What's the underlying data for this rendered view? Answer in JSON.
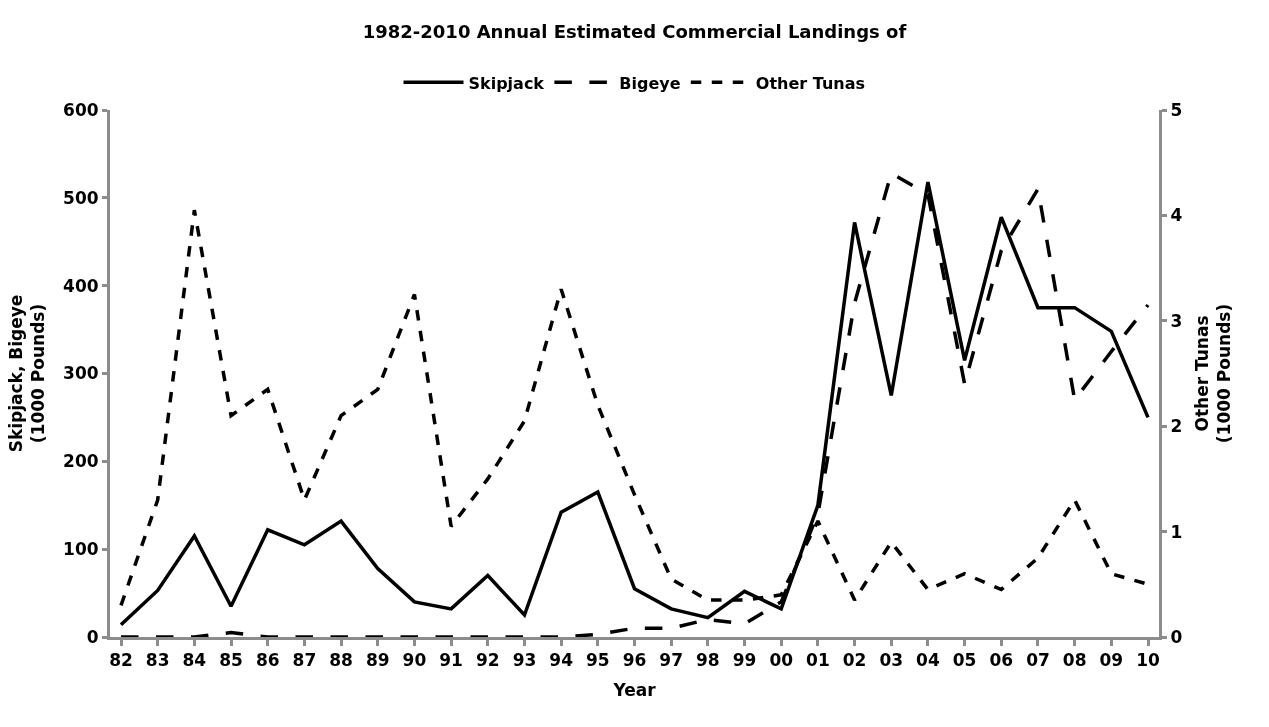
{
  "chart_data": {
    "type": "line",
    "title": "1982-2010 Annual Estimated Commercial Landings of",
    "xlabel": "Year",
    "ylabel": "Skipjack, Bigeye\n(1000 Pounds)",
    "y2label": "Other Tunas\n(1000 Pounds)",
    "categories": [
      "82",
      "83",
      "84",
      "85",
      "86",
      "87",
      "88",
      "89",
      "90",
      "91",
      "92",
      "93",
      "94",
      "95",
      "96",
      "97",
      "98",
      "99",
      "00",
      "01",
      "02",
      "03",
      "04",
      "05",
      "06",
      "07",
      "08",
      "09",
      "10"
    ],
    "series": [
      {
        "name": "Skipjack",
        "color": "#000000",
        "line_style": "solid",
        "values": [
          14,
          53,
          115,
          35,
          122,
          105,
          132,
          78,
          40,
          32,
          70,
          25,
          142,
          165,
          55,
          32,
          22,
          52,
          32,
          150,
          472,
          275,
          518,
          315,
          478,
          375,
          375,
          348,
          250
        ]
      },
      {
        "name": "Bigeye",
        "color": "#000000",
        "line_style": "dashed",
        "values": [
          0,
          0,
          0,
          5,
          0,
          0,
          0,
          0,
          0,
          0,
          0,
          0,
          0,
          3,
          10,
          10,
          20,
          15,
          40,
          140,
          380,
          528,
          504,
          288,
          440,
          510,
          270,
          325,
          378
        ]
      },
      {
        "name": "Other Tunas",
        "color": "#000000",
        "line_style": "dotted",
        "axis": "y2",
        "values": [
          0.3,
          1.3,
          4.05,
          2.1,
          2.35,
          1.3,
          2.1,
          2.35,
          3.25,
          1.05,
          1.5,
          2.05,
          3.3,
          2.2,
          1.35,
          0.55,
          0.35,
          0.35,
          0.4,
          1.1,
          0.35,
          0.9,
          0.45,
          0.6,
          0.45,
          0.75,
          1.3,
          0.6,
          0.5
        ]
      }
    ],
    "ylim": [
      0,
      600
    ],
    "yticks": [
      0,
      100,
      200,
      300,
      400,
      500,
      600
    ],
    "y2lim": [
      0,
      5
    ],
    "y2ticks": [
      0,
      1,
      2,
      3,
      4,
      5
    ],
    "legend": "top",
    "marker": "none"
  }
}
